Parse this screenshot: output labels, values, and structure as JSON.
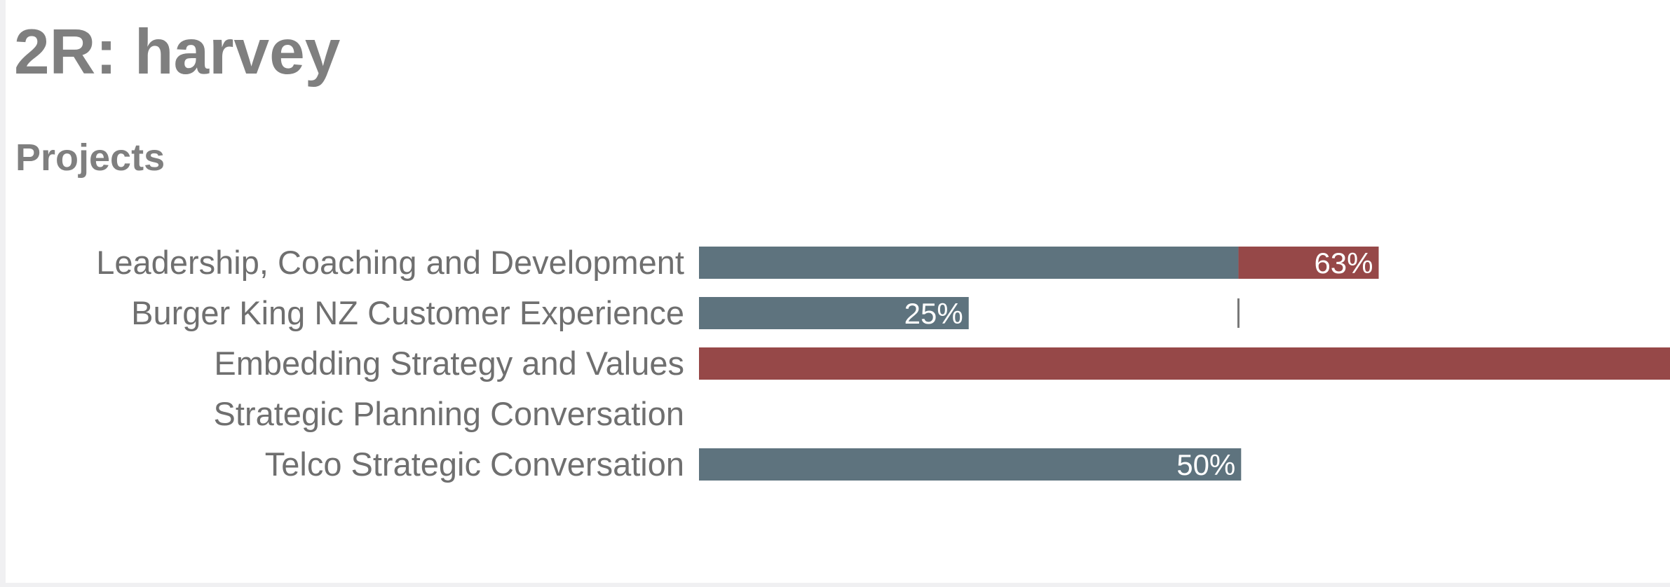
{
  "header": {
    "title": "2R: harvey"
  },
  "section": {
    "title": "Projects"
  },
  "colors": {
    "progress": "#5e737e",
    "remaining": "#964848",
    "marker": "#777777",
    "label_text": "#6f6f6f",
    "title_text": "#7f7f7f"
  },
  "chart_data": {
    "type": "bar",
    "orientation": "horizontal",
    "stacked": true,
    "categories": [
      "Leadership, Coaching and Development",
      "Burger King NZ Customer Experience",
      "Embedding Strategy and Values",
      "Strategic Planning Conversation",
      "Telco Strategic Conversation"
    ],
    "xlim": [
      0,
      180
    ],
    "marker_value": 100,
    "series": [
      {
        "key": "progress",
        "values": [
          100,
          50,
          0,
          0,
          100.5
        ]
      },
      {
        "key": "remaining",
        "values": [
          26,
          0,
          180,
          0,
          0
        ]
      }
    ],
    "data_labels": [
      "63%",
      "25%",
      "",
      "",
      "50%"
    ],
    "data_label_series": [
      "remaining",
      "progress",
      null,
      null,
      "progress"
    ]
  }
}
